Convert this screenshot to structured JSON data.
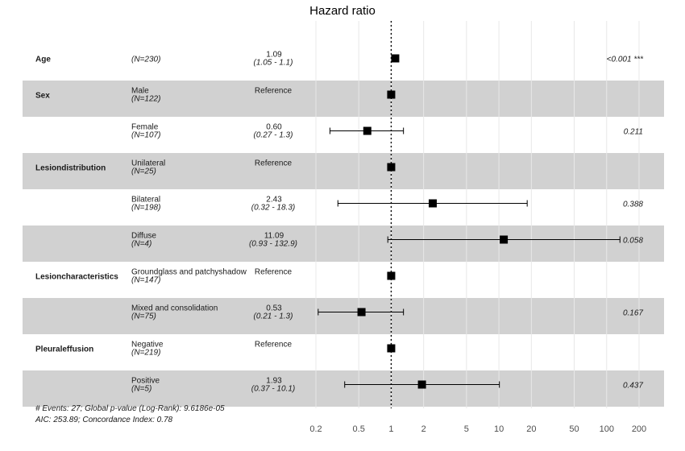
{
  "chart_data": {
    "type": "forest",
    "title": "Hazard ratio",
    "x_scale": "log",
    "xlim": [
      0.2,
      200
    ],
    "x_ticks": [
      "0.2",
      "0.5",
      "1",
      "2",
      "5",
      "10",
      "20",
      "50",
      "100",
      "200"
    ],
    "reference_line": 1,
    "rows": [
      {
        "variable": "Age",
        "level": "",
        "n": "(N=230)",
        "hr_text": "1.09",
        "ci_text": "(1.05 -   1.1)",
        "hr": 1.09,
        "lo": 1.05,
        "hi": 1.1,
        "p_text": "<0.001 ***",
        "shaded": false
      },
      {
        "variable": "Sex",
        "level": "Male",
        "n": "(N=122)",
        "hr_text": "Reference",
        "ci_text": "",
        "hr": 1,
        "lo": null,
        "hi": null,
        "p_text": "",
        "shaded": true
      },
      {
        "variable": "",
        "level": "Female",
        "n": "(N=107)",
        "hr_text": "0.60",
        "ci_text": "(0.27 -   1.3)",
        "hr": 0.6,
        "lo": 0.27,
        "hi": 1.3,
        "p_text": "0.211",
        "shaded": false
      },
      {
        "variable": "Lesiondistribution",
        "level": "Unilateral",
        "n": "(N=25)",
        "hr_text": "Reference",
        "ci_text": "",
        "hr": 1,
        "lo": null,
        "hi": null,
        "p_text": "",
        "shaded": true
      },
      {
        "variable": "",
        "level": "Bilateral",
        "n": "(N=198)",
        "hr_text": "2.43",
        "ci_text": "(0.32 -  18.3)",
        "hr": 2.43,
        "lo": 0.32,
        "hi": 18.3,
        "p_text": "0.388",
        "shaded": false
      },
      {
        "variable": "",
        "level": "Diffuse",
        "n": "(N=4)",
        "hr_text": "11.09",
        "ci_text": "(0.93 - 132.9)",
        "hr": 11.09,
        "lo": 0.93,
        "hi": 132.9,
        "p_text": "0.058",
        "shaded": true
      },
      {
        "variable": "Lesioncharacteristics",
        "level": "Groundglass and patchyshadow",
        "n": "(N=147)",
        "hr_text": "Reference",
        "ci_text": "",
        "hr": 1,
        "lo": null,
        "hi": null,
        "p_text": "",
        "shaded": false
      },
      {
        "variable": "",
        "level": "Mixed and consolidation",
        "n": "(N=75)",
        "hr_text": "0.53",
        "ci_text": "(0.21 -   1.3)",
        "hr": 0.53,
        "lo": 0.21,
        "hi": 1.3,
        "p_text": "0.167",
        "shaded": true
      },
      {
        "variable": "Pleuraleffusion",
        "level": "Negative",
        "n": "(N=219)",
        "hr_text": "Reference",
        "ci_text": "",
        "hr": 1,
        "lo": null,
        "hi": null,
        "p_text": "",
        "shaded": false
      },
      {
        "variable": "",
        "level": "Positive",
        "n": "(N=5)",
        "hr_text": "1.93",
        "ci_text": "(0.37 -  10.1)",
        "hr": 1.93,
        "lo": 0.37,
        "hi": 10.1,
        "p_text": "0.437",
        "shaded": true
      }
    ],
    "footnote_line1": "# Events: 27; Global p-value (Log-Rank): 9.6186e-05",
    "footnote_line2": "AIC: 253.89; Concordance Index: 0.78",
    "colors": {
      "shade": "#d1d1d1",
      "marker": "#000000",
      "grid": "#e8e8e8"
    }
  }
}
